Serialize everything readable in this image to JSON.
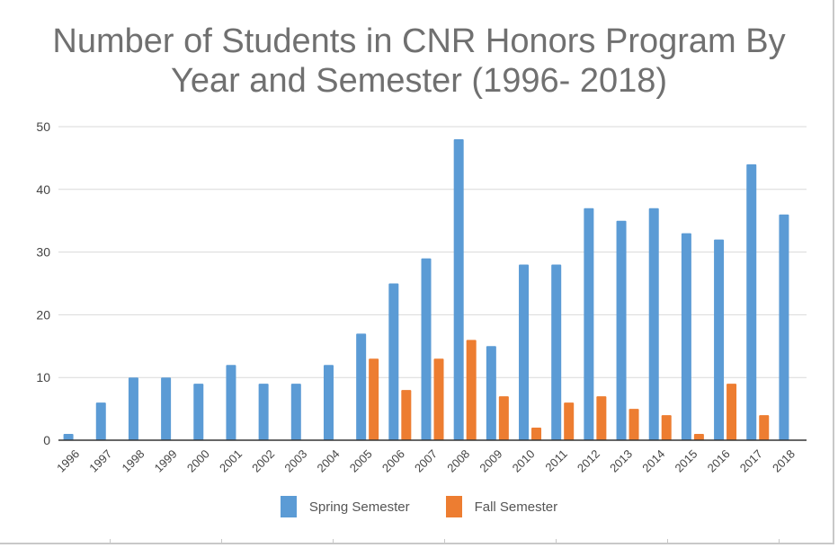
{
  "chart_data": {
    "type": "bar",
    "title_lines": [
      "Number of Students in CNR Honors Program By",
      "Year and Semester (1996- 2018)"
    ],
    "categories": [
      "1996",
      "1997",
      "1998",
      "1999",
      "2000",
      "2001",
      "2002",
      "2003",
      "2004",
      "2005",
      "2006",
      "2007",
      "2008",
      "2009",
      "2010",
      "2011",
      "2012",
      "2013",
      "2014",
      "2015",
      "2016",
      "2017",
      "2018"
    ],
    "series": [
      {
        "name": "Spring Semester",
        "color": "#5b9bd5",
        "values": [
          1,
          6,
          10,
          10,
          9,
          12,
          9,
          9,
          12,
          17,
          25,
          29,
          48,
          15,
          28,
          28,
          37,
          35,
          37,
          33,
          32,
          44,
          36
        ]
      },
      {
        "name": "Fall Semester",
        "color": "#ed7d31",
        "values": [
          0,
          0,
          0,
          0,
          0,
          0,
          0,
          0,
          0,
          13,
          8,
          13,
          16,
          7,
          2,
          6,
          7,
          5,
          4,
          1,
          9,
          4,
          0
        ]
      }
    ],
    "ylim": [
      0,
      50
    ],
    "yticks": [
      "0",
      "10",
      "20",
      "30",
      "40",
      "50"
    ],
    "xlabel": "",
    "ylabel": "",
    "grid": true,
    "legend_position": "bottom"
  }
}
